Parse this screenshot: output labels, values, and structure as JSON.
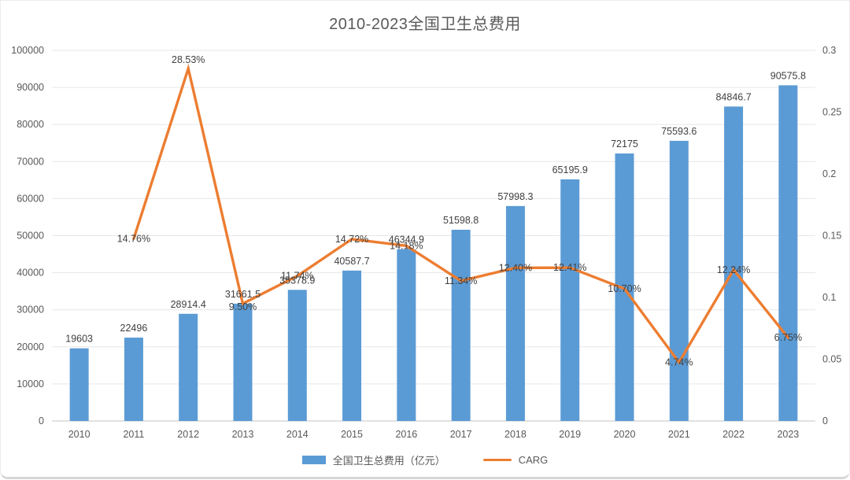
{
  "chart_data": {
    "type": "bar+line combo",
    "title": "2010-2023全国卫生总费用",
    "categories": [
      "2010",
      "2011",
      "2012",
      "2013",
      "2014",
      "2015",
      "2016",
      "2017",
      "2018",
      "2019",
      "2020",
      "2021",
      "2022",
      "2023"
    ],
    "series": [
      {
        "name": "全国卫生总费用（亿元）",
        "type": "bar",
        "axis": "left",
        "color": "#5B9BD5",
        "values": [
          19603,
          22496,
          28914.4,
          31661.5,
          35378.9,
          40587.7,
          46344.9,
          51598.8,
          57998.3,
          65195.9,
          72175,
          75593.6,
          84846.7,
          90575.8
        ],
        "labels": [
          "19603",
          "22496",
          "28914.4",
          "31661.5",
          "35378.9",
          "40587.7",
          "46344.9",
          "51598.8",
          "57998.3",
          "65195.9",
          "72175",
          "75593.6",
          "84846.7",
          "90575.8"
        ]
      },
      {
        "name": "CARG",
        "type": "line",
        "axis": "right",
        "color": "#ED7D31",
        "values": [
          null,
          0.1476,
          0.2853,
          0.095,
          0.1174,
          0.1472,
          0.1418,
          0.1134,
          0.124,
          0.1241,
          0.107,
          0.0474,
          0.1224,
          0.0675
        ],
        "labels": [
          null,
          "14.76%",
          "28.53%",
          "9.50%",
          "11.74%",
          "14.72%",
          "14.18%",
          "11.34%",
          "12.40%",
          "12.41%",
          "10.70%",
          "4.74%",
          "12.24%",
          "6.75%"
        ]
      }
    ],
    "left_axis": {
      "min": 0,
      "max": 100000,
      "step": 10000,
      "ticks": [
        "0",
        "10000",
        "20000",
        "30000",
        "40000",
        "50000",
        "60000",
        "70000",
        "80000",
        "90000",
        "100000"
      ]
    },
    "right_axis": {
      "min": 0,
      "max": 0.3,
      "step": 0.05,
      "ticks": [
        "0",
        "0.05",
        "0.1",
        "0.15",
        "0.2",
        "0.25",
        "0.3"
      ]
    },
    "grid": true,
    "legend_position": "bottom"
  },
  "legend": {
    "bar_label": "全国卫生总费用（亿元）",
    "line_label": "CARG"
  },
  "colors": {
    "bar": "#5B9BD5",
    "line": "#ED7D31",
    "data_label": "#404040",
    "axis_text": "#595959",
    "gridline": "#e7e7e7",
    "baseline": "#d9d9d9",
    "title": "#595959"
  }
}
